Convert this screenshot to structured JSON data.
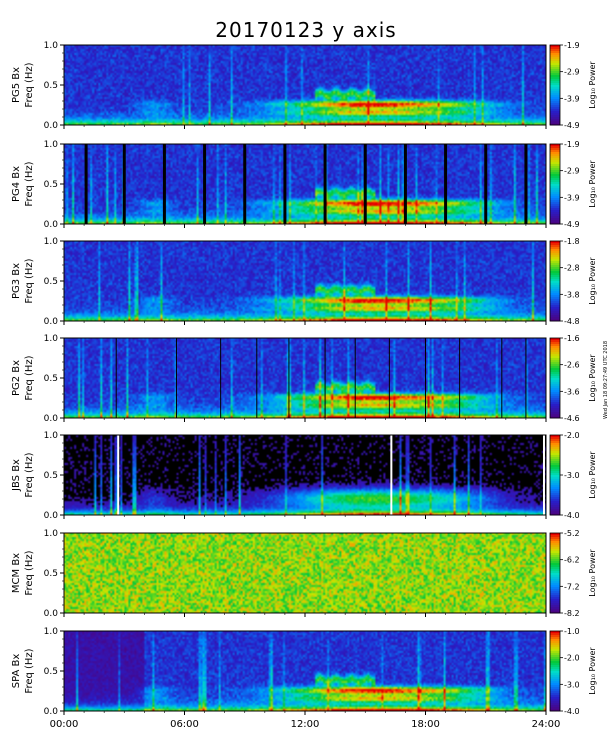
{
  "title": "20170123 y axis",
  "chart_data": {
    "type": "heatmap",
    "title": "20170123 y axis",
    "x_ticks": [
      "00:00",
      "06:00",
      "12:00",
      "18:00",
      "24:00"
    ],
    "x_range_hours": [
      0,
      24
    ],
    "freq_label": "Freq (Hz)",
    "freq_ticks": [
      "0.0",
      "0.5",
      "1.0"
    ],
    "ylim": [
      0,
      1
    ],
    "colorbar_label": "Log₁₀ Power",
    "side_note": "Wed Jan 18 09:27:49 UTC 2018",
    "panels": [
      {
        "station": "PG5 Bx",
        "cbar_ticks": [
          "-1.9",
          "-2.9",
          "-3.9",
          "-4.9"
        ],
        "clim": [
          -4.9,
          -1.9
        ]
      },
      {
        "station": "PG4 Bx",
        "cbar_ticks": [
          "-1.9",
          "-2.9",
          "-3.9",
          "-4.9"
        ],
        "clim": [
          -4.9,
          -1.9
        ]
      },
      {
        "station": "PG3 Bx",
        "cbar_ticks": [
          "-1.8",
          "-2.8",
          "-3.8",
          "-4.8"
        ],
        "clim": [
          -4.8,
          -1.8
        ]
      },
      {
        "station": "PG2 Bx",
        "cbar_ticks": [
          "-1.6",
          "-2.6",
          "-3.6",
          "-4.6"
        ],
        "clim": [
          -4.6,
          -1.6
        ]
      },
      {
        "station": "JBS Bx",
        "cbar_ticks": [
          "-2.0",
          "-3.0",
          "-4.0"
        ],
        "clim": [
          -4.0,
          -2.0
        ]
      },
      {
        "station": "MCM Bx",
        "cbar_ticks": [
          "-5.2",
          "-6.2",
          "-7.2",
          "-8.2"
        ],
        "clim": [
          -8.2,
          -5.2
        ]
      },
      {
        "station": "SPA Bx",
        "cbar_ticks": [
          "-1.0",
          "-2.0",
          "-3.0",
          "-4.0"
        ],
        "clim": [
          -4.0,
          -1.0
        ]
      }
    ]
  }
}
